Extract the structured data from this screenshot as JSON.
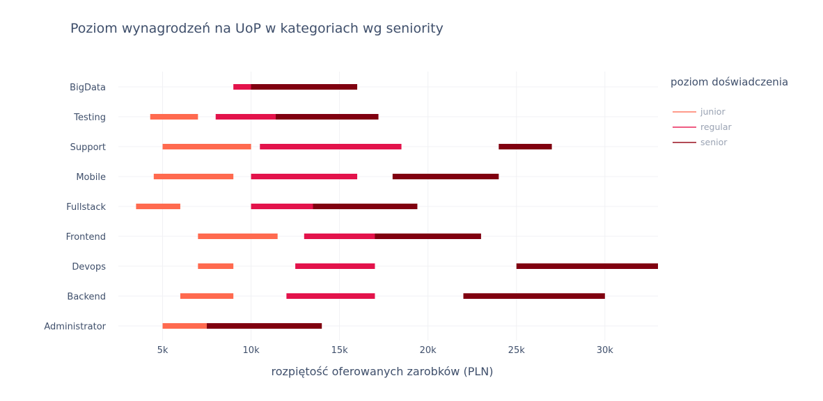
{
  "chart_data": {
    "type": "bar",
    "subtype": "horizontal-range",
    "title": "Poziom wynagrodzeń na UoP w kategoriach wg seniority",
    "xlabel": "rozpiętość oferowanych zarobków (PLN)",
    "ylabel": "",
    "xlim": [
      2500,
      33000
    ],
    "xticks": [
      5000,
      10000,
      15000,
      20000,
      25000,
      30000
    ],
    "xtick_labels": [
      "5k",
      "10k",
      "15k",
      "20k",
      "25k",
      "30k"
    ],
    "categories": [
      "BigData",
      "Testing",
      "Support",
      "Mobile",
      "Fullstack",
      "Frontend",
      "Devops",
      "Backend",
      "Administrator"
    ],
    "grid": true,
    "legend_title": "poziom doświadczenia",
    "legend_position": "right",
    "series": [
      {
        "name": "junior",
        "color": "#ff6a4f",
        "ranges": [
          {
            "category": "BigData",
            "min": null,
            "max": null
          },
          {
            "category": "Testing",
            "min": 4300,
            "max": 7000
          },
          {
            "category": "Support",
            "min": 5000,
            "max": 10000
          },
          {
            "category": "Mobile",
            "min": 4500,
            "max": 9000
          },
          {
            "category": "Fullstack",
            "min": 3500,
            "max": 6000
          },
          {
            "category": "Frontend",
            "min": 7000,
            "max": 11500
          },
          {
            "category": "Devops",
            "min": 7000,
            "max": 9000
          },
          {
            "category": "Backend",
            "min": 6000,
            "max": 9000
          },
          {
            "category": "Administrator",
            "min": 5000,
            "max": 9000
          }
        ]
      },
      {
        "name": "regular",
        "color": "#e3134b",
        "ranges": [
          {
            "category": "BigData",
            "min": 9000,
            "max": 12500
          },
          {
            "category": "Testing",
            "min": 8000,
            "max": 12500
          },
          {
            "category": "Support",
            "min": 10500,
            "max": 18500
          },
          {
            "category": "Mobile",
            "min": 10000,
            "max": 16000
          },
          {
            "category": "Fullstack",
            "min": 10000,
            "max": 15700
          },
          {
            "category": "Frontend",
            "min": 13000,
            "max": 20000
          },
          {
            "category": "Devops",
            "min": 12500,
            "max": 17000
          },
          {
            "category": "Backend",
            "min": 12000,
            "max": 17000
          },
          {
            "category": "Administrator",
            "min": 7500,
            "max": 13000
          }
        ]
      },
      {
        "name": "senior",
        "color": "#800010",
        "ranges": [
          {
            "category": "BigData",
            "min": 10000,
            "max": 16000
          },
          {
            "category": "Testing",
            "min": 11400,
            "max": 17200
          },
          {
            "category": "Support",
            "min": 24000,
            "max": 27000
          },
          {
            "category": "Mobile",
            "min": 18000,
            "max": 24000
          },
          {
            "category": "Fullstack",
            "min": 13500,
            "max": 19400
          },
          {
            "category": "Frontend",
            "min": 17000,
            "max": 23000
          },
          {
            "category": "Devops",
            "min": 25000,
            "max": 33000
          },
          {
            "category": "Backend",
            "min": 22000,
            "max": 30000
          },
          {
            "category": "Administrator",
            "min": 7500,
            "max": 14000
          }
        ]
      }
    ]
  }
}
